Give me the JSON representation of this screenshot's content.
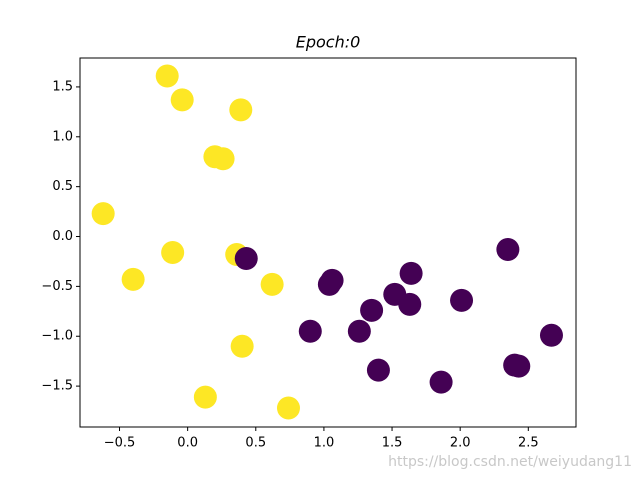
{
  "chart_data": {
    "type": "scatter",
    "title": "Epoch:0",
    "watermark": "https://blog.csdn.net/weiyudang11",
    "xlim": [
      -0.79,
      2.85
    ],
    "ylim": [
      -1.91,
      1.79
    ],
    "xticks": [
      {
        "value": -0.5,
        "label": "−0.5"
      },
      {
        "value": 0,
        "label": "0.0"
      },
      0.5,
      {
        "value": 1,
        "label": "1.0"
      },
      1.5,
      {
        "value": 2,
        "label": "2.0"
      },
      2.5
    ],
    "yticks": [
      {
        "value": -1.5,
        "label": "−1.5"
      },
      {
        "value": -1,
        "label": "−1.0"
      },
      {
        "value": -0.5,
        "label": "−0.5"
      },
      {
        "value": 0,
        "label": "0.0"
      },
      0.5,
      {
        "value": 1,
        "label": "1.0"
      },
      1.5
    ],
    "series": [
      {
        "color": "#fde725",
        "x": [
          -0.15,
          -0.04,
          0.39,
          0.2,
          0.26,
          -0.62,
          -0.11,
          -0.4,
          0.36,
          0.62,
          0.4,
          0.13,
          0.74
        ],
        "y": [
          1.61,
          1.37,
          1.27,
          0.8,
          0.78,
          0.23,
          -0.16,
          -0.43,
          -0.18,
          -0.48,
          -1.1,
          -1.61,
          -1.72
        ]
      },
      {
        "color": "#440154",
        "x": [
          0.43,
          1.06,
          1.04,
          1.64,
          2.35,
          1.52,
          1.63,
          2.01,
          1.35,
          0.9,
          1.26,
          2.67,
          1.4,
          1.86,
          2.4,
          2.43
        ],
        "y": [
          -0.22,
          -0.44,
          -0.48,
          -0.37,
          -0.13,
          -0.58,
          -0.68,
          -0.64,
          -0.74,
          -0.95,
          -0.95,
          -0.99,
          -1.34,
          -1.46,
          -1.29,
          -1.3
        ]
      }
    ]
  }
}
